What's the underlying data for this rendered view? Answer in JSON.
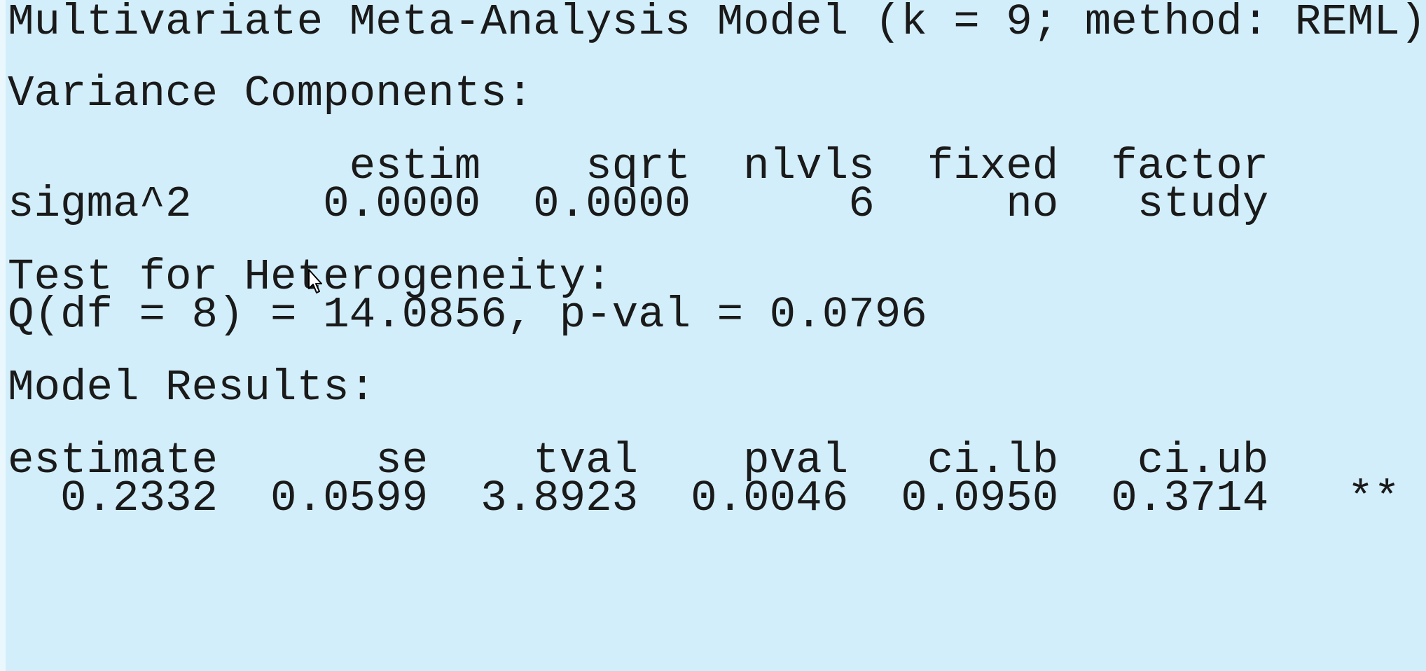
{
  "console": {
    "title": "Multivariate Meta-Analysis Model (k = 9; method: REML)",
    "variance_heading": "Variance Components:",
    "variance_header": "             estim    sqrt  nlvls  fixed  factor",
    "variance_row": "sigma^2     0.0000  0.0000      6     no   study",
    "heterogeneity_heading": "Test for Heterogeneity:",
    "heterogeneity_result": "Q(df = 8) = 14.0856, p-val = 0.0796",
    "results_heading": "Model Results:",
    "results_header": "estimate      se    tval    pval   ci.lb   ci.ub",
    "results_row": "  0.2332  0.0599  3.8923  0.0046  0.0950  0.3714   **"
  },
  "icons": {
    "cursor": "mouse-pointer-icon"
  },
  "colors": {
    "background": "#d2eefa",
    "text": "#1a1a1a"
  }
}
